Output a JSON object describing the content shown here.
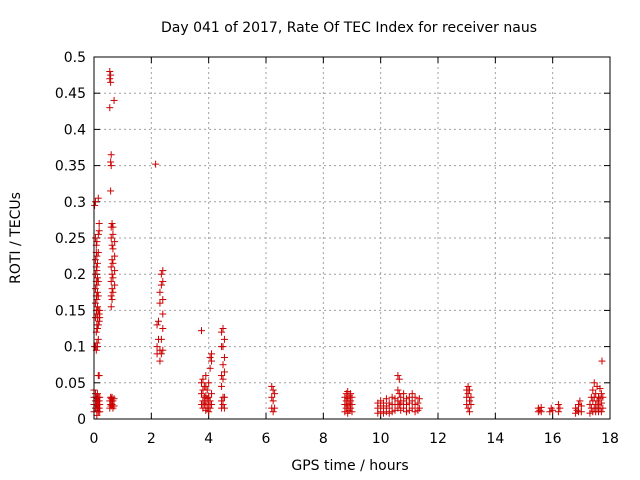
{
  "chart_data": {
    "type": "scatter",
    "title": "Day 041 of 2017, Rate Of TEC Index for receiver naus",
    "xlabel": "GPS time / hours",
    "ylabel": "ROTI / TECUs",
    "xlim": [
      0,
      18
    ],
    "ylim": [
      0,
      0.5
    ],
    "x_ticks": [
      "0",
      "2",
      "4",
      "6",
      "8",
      "10",
      "12",
      "14",
      "16",
      "18"
    ],
    "y_ticks": [
      "0",
      "0.05",
      "0.1",
      "0.15",
      "0.2",
      "0.25",
      "0.3",
      "0.35",
      "0.4",
      "0.45",
      "0.5"
    ],
    "grid": true,
    "marker": "+",
    "color": "#cc0000",
    "series": [
      {
        "values": [
          [
            0.0,
            0.01
          ],
          [
            0.0,
            0.02
          ],
          [
            0.0,
            0.03
          ],
          [
            0.0,
            0.04
          ],
          [
            0.02,
            0.1
          ],
          [
            0.02,
            0.295
          ],
          [
            0.05,
            0.015
          ],
          [
            0.05,
            0.025
          ],
          [
            0.05,
            0.035
          ],
          [
            0.05,
            0.1
          ],
          [
            0.05,
            0.14
          ],
          [
            0.05,
            0.16
          ],
          [
            0.05,
            0.18
          ],
          [
            0.05,
            0.2
          ],
          [
            0.05,
            0.22
          ],
          [
            0.05,
            0.25
          ],
          [
            0.05,
            0.3
          ],
          [
            0.08,
            0.02
          ],
          [
            0.08,
            0.03
          ],
          [
            0.08,
            0.095
          ],
          [
            0.08,
            0.12
          ],
          [
            0.08,
            0.15
          ],
          [
            0.08,
            0.17
          ],
          [
            0.08,
            0.19
          ],
          [
            0.08,
            0.21
          ],
          [
            0.08,
            0.23
          ],
          [
            0.08,
            0.24
          ],
          [
            0.1,
            0.005
          ],
          [
            0.1,
            0.012
          ],
          [
            0.1,
            0.018
          ],
          [
            0.1,
            0.028
          ],
          [
            0.1,
            0.105
          ],
          [
            0.1,
            0.13
          ],
          [
            0.1,
            0.145
          ],
          [
            0.1,
            0.165
          ],
          [
            0.1,
            0.185
          ],
          [
            0.1,
            0.205
          ],
          [
            0.1,
            0.225
          ],
          [
            0.1,
            0.245
          ],
          [
            0.12,
            0.015
          ],
          [
            0.12,
            0.025
          ],
          [
            0.12,
            0.035
          ],
          [
            0.12,
            0.1
          ],
          [
            0.12,
            0.125
          ],
          [
            0.12,
            0.14
          ],
          [
            0.12,
            0.155
          ],
          [
            0.12,
            0.175
          ],
          [
            0.12,
            0.195
          ],
          [
            0.12,
            0.215
          ],
          [
            0.15,
            0.01
          ],
          [
            0.15,
            0.02
          ],
          [
            0.15,
            0.03
          ],
          [
            0.15,
            0.06
          ],
          [
            0.15,
            0.11
          ],
          [
            0.15,
            0.13
          ],
          [
            0.15,
            0.15
          ],
          [
            0.15,
            0.17
          ],
          [
            0.15,
            0.19
          ],
          [
            0.15,
            0.23
          ],
          [
            0.15,
            0.255
          ],
          [
            0.15,
            0.305
          ],
          [
            0.18,
            0.015
          ],
          [
            0.18,
            0.025
          ],
          [
            0.18,
            0.06
          ],
          [
            0.18,
            0.135
          ],
          [
            0.18,
            0.145
          ],
          [
            0.18,
            0.26
          ],
          [
            0.18,
            0.27
          ],
          [
            0.2,
            0.01
          ],
          [
            0.2,
            0.02
          ],
          [
            0.2,
            0.03
          ],
          [
            0.2,
            0.14
          ],
          [
            0.2,
            0.15
          ],
          [
            0.55,
            0.015
          ],
          [
            0.55,
            0.025
          ],
          [
            0.55,
            0.43
          ],
          [
            0.55,
            0.47
          ],
          [
            0.55,
            0.48
          ],
          [
            0.58,
            0.02
          ],
          [
            0.58,
            0.03
          ],
          [
            0.58,
            0.315
          ],
          [
            0.58,
            0.355
          ],
          [
            0.58,
            0.465
          ],
          [
            0.58,
            0.475
          ],
          [
            0.6,
            0.018
          ],
          [
            0.6,
            0.028
          ],
          [
            0.6,
            0.155
          ],
          [
            0.6,
            0.17
          ],
          [
            0.6,
            0.19
          ],
          [
            0.6,
            0.21
          ],
          [
            0.6,
            0.25
          ],
          [
            0.6,
            0.265
          ],
          [
            0.6,
            0.35
          ],
          [
            0.6,
            0.365
          ],
          [
            0.63,
            0.02
          ],
          [
            0.63,
            0.03
          ],
          [
            0.63,
            0.165
          ],
          [
            0.63,
            0.18
          ],
          [
            0.63,
            0.2
          ],
          [
            0.63,
            0.22
          ],
          [
            0.63,
            0.24
          ],
          [
            0.63,
            0.27
          ],
          [
            0.66,
            0.015
          ],
          [
            0.66,
            0.025
          ],
          [
            0.66,
            0.175
          ],
          [
            0.66,
            0.195
          ],
          [
            0.66,
            0.215
          ],
          [
            0.66,
            0.235
          ],
          [
            0.66,
            0.255
          ],
          [
            0.66,
            0.265
          ],
          [
            0.7,
            0.018
          ],
          [
            0.7,
            0.028
          ],
          [
            0.7,
            0.44
          ],
          [
            0.72,
            0.185
          ],
          [
            0.72,
            0.205
          ],
          [
            0.72,
            0.225
          ],
          [
            0.72,
            0.245
          ],
          [
            2.15,
            0.352
          ],
          [
            2.2,
            0.09
          ],
          [
            2.2,
            0.1
          ],
          [
            2.2,
            0.13
          ],
          [
            2.25,
            0.11
          ],
          [
            2.25,
            0.135
          ],
          [
            2.3,
            0.08
          ],
          [
            2.3,
            0.095
          ],
          [
            2.3,
            0.16
          ],
          [
            2.3,
            0.175
          ],
          [
            2.35,
            0.09
          ],
          [
            2.35,
            0.11
          ],
          [
            2.35,
            0.185
          ],
          [
            2.35,
            0.2
          ],
          [
            2.4,
            0.095
          ],
          [
            2.4,
            0.125
          ],
          [
            2.4,
            0.145
          ],
          [
            2.4,
            0.165
          ],
          [
            2.4,
            0.19
          ],
          [
            2.4,
            0.205
          ],
          [
            3.75,
            0.02
          ],
          [
            3.75,
            0.035
          ],
          [
            3.75,
            0.05
          ],
          [
            3.75,
            0.122
          ],
          [
            3.8,
            0.015
          ],
          [
            3.8,
            0.025
          ],
          [
            3.8,
            0.04
          ],
          [
            3.8,
            0.055
          ],
          [
            3.85,
            0.02
          ],
          [
            3.85,
            0.03
          ],
          [
            3.85,
            0.045
          ],
          [
            3.9,
            0.012
          ],
          [
            3.9,
            0.022
          ],
          [
            3.9,
            0.032
          ],
          [
            3.9,
            0.045
          ],
          [
            3.9,
            0.06
          ],
          [
            3.95,
            0.015
          ],
          [
            3.95,
            0.028
          ],
          [
            3.95,
            0.04
          ],
          [
            4.0,
            0.01
          ],
          [
            4.0,
            0.02
          ],
          [
            4.0,
            0.03
          ],
          [
            4.0,
            0.05
          ],
          [
            4.05,
            0.015
          ],
          [
            4.05,
            0.025
          ],
          [
            4.05,
            0.07
          ],
          [
            4.05,
            0.085
          ],
          [
            4.1,
            0.02
          ],
          [
            4.1,
            0.035
          ],
          [
            4.1,
            0.08
          ],
          [
            4.1,
            0.09
          ],
          [
            4.45,
            0.015
          ],
          [
            4.45,
            0.025
          ],
          [
            4.45,
            0.045
          ],
          [
            4.45,
            0.06
          ],
          [
            4.45,
            0.1
          ],
          [
            4.45,
            0.12
          ],
          [
            4.5,
            0.02
          ],
          [
            4.5,
            0.03
          ],
          [
            4.5,
            0.055
          ],
          [
            4.5,
            0.075
          ],
          [
            4.5,
            0.1
          ],
          [
            4.5,
            0.125
          ],
          [
            4.55,
            0.015
          ],
          [
            4.55,
            0.03
          ],
          [
            4.55,
            0.065
          ],
          [
            4.55,
            0.085
          ],
          [
            4.55,
            0.11
          ],
          [
            6.2,
            0.015
          ],
          [
            6.2,
            0.03
          ],
          [
            6.2,
            0.045
          ],
          [
            6.25,
            0.01
          ],
          [
            6.25,
            0.025
          ],
          [
            6.25,
            0.04
          ],
          [
            6.3,
            0.015
          ],
          [
            6.3,
            0.035
          ],
          [
            8.75,
            0.01
          ],
          [
            8.75,
            0.02
          ],
          [
            8.75,
            0.03
          ],
          [
            8.8,
            0.015
          ],
          [
            8.8,
            0.025
          ],
          [
            8.8,
            0.035
          ],
          [
            8.85,
            0.008
          ],
          [
            8.85,
            0.018
          ],
          [
            8.85,
            0.028
          ],
          [
            8.85,
            0.038
          ],
          [
            8.9,
            0.012
          ],
          [
            8.9,
            0.022
          ],
          [
            8.9,
            0.032
          ],
          [
            8.95,
            0.015
          ],
          [
            8.95,
            0.025
          ],
          [
            8.95,
            0.035
          ],
          [
            9.0,
            0.01
          ],
          [
            9.0,
            0.02
          ],
          [
            9.0,
            0.03
          ],
          [
            9.9,
            0.008
          ],
          [
            9.9,
            0.015
          ],
          [
            9.9,
            0.022
          ],
          [
            10.0,
            0.01
          ],
          [
            10.0,
            0.018
          ],
          [
            10.0,
            0.025
          ],
          [
            10.1,
            0.008
          ],
          [
            10.1,
            0.015
          ],
          [
            10.1,
            0.022
          ],
          [
            10.2,
            0.01
          ],
          [
            10.2,
            0.018
          ],
          [
            10.2,
            0.028
          ],
          [
            10.3,
            0.008
          ],
          [
            10.3,
            0.015
          ],
          [
            10.3,
            0.022
          ],
          [
            10.4,
            0.01
          ],
          [
            10.4,
            0.02
          ],
          [
            10.4,
            0.03
          ],
          [
            10.5,
            0.012
          ],
          [
            10.5,
            0.02
          ],
          [
            10.5,
            0.028
          ],
          [
            10.6,
            0.015
          ],
          [
            10.6,
            0.025
          ],
          [
            10.6,
            0.04
          ],
          [
            10.6,
            0.06
          ],
          [
            10.65,
            0.02
          ],
          [
            10.65,
            0.035
          ],
          [
            10.65,
            0.055
          ],
          [
            10.7,
            0.012
          ],
          [
            10.7,
            0.022
          ],
          [
            10.7,
            0.03
          ],
          [
            10.8,
            0.015
          ],
          [
            10.8,
            0.025
          ],
          [
            10.8,
            0.035
          ],
          [
            10.9,
            0.01
          ],
          [
            10.9,
            0.02
          ],
          [
            10.9,
            0.028
          ],
          [
            11.0,
            0.012
          ],
          [
            11.0,
            0.022
          ],
          [
            11.0,
            0.03
          ],
          [
            11.1,
            0.015
          ],
          [
            11.1,
            0.025
          ],
          [
            11.1,
            0.035
          ],
          [
            11.2,
            0.01
          ],
          [
            11.2,
            0.02
          ],
          [
            11.2,
            0.03
          ],
          [
            11.3,
            0.012
          ],
          [
            11.3,
            0.022
          ],
          [
            11.35,
            0.015
          ],
          [
            11.35,
            0.028
          ],
          [
            13.0,
            0.02
          ],
          [
            13.0,
            0.03
          ],
          [
            13.0,
            0.04
          ],
          [
            13.05,
            0.015
          ],
          [
            13.05,
            0.035
          ],
          [
            13.05,
            0.045
          ],
          [
            13.1,
            0.01
          ],
          [
            13.1,
            0.025
          ],
          [
            13.1,
            0.04
          ],
          [
            13.15,
            0.02
          ],
          [
            13.15,
            0.03
          ],
          [
            15.5,
            0.01
          ],
          [
            15.5,
            0.015
          ],
          [
            15.55,
            0.012
          ],
          [
            15.6,
            0.01
          ],
          [
            15.6,
            0.016
          ],
          [
            15.9,
            0.01
          ],
          [
            15.95,
            0.015
          ],
          [
            16.0,
            0.012
          ],
          [
            16.2,
            0.01
          ],
          [
            16.2,
            0.02
          ],
          [
            16.25,
            0.015
          ],
          [
            16.8,
            0.008
          ],
          [
            16.8,
            0.015
          ],
          [
            16.85,
            0.012
          ],
          [
            16.9,
            0.01
          ],
          [
            16.9,
            0.02
          ],
          [
            16.95,
            0.025
          ],
          [
            17.0,
            0.01
          ],
          [
            17.0,
            0.018
          ],
          [
            17.3,
            0.008
          ],
          [
            17.3,
            0.02
          ],
          [
            17.35,
            0.015
          ],
          [
            17.35,
            0.03
          ],
          [
            17.4,
            0.01
          ],
          [
            17.4,
            0.025
          ],
          [
            17.4,
            0.04
          ],
          [
            17.45,
            0.015
          ],
          [
            17.45,
            0.03
          ],
          [
            17.45,
            0.05
          ],
          [
            17.5,
            0.01
          ],
          [
            17.5,
            0.02
          ],
          [
            17.5,
            0.035
          ],
          [
            17.55,
            0.015
          ],
          [
            17.55,
            0.025
          ],
          [
            17.55,
            0.045
          ],
          [
            17.6,
            0.01
          ],
          [
            17.6,
            0.02
          ],
          [
            17.6,
            0.03
          ],
          [
            17.65,
            0.015
          ],
          [
            17.65,
            0.028
          ],
          [
            17.65,
            0.042
          ],
          [
            17.7,
            0.01
          ],
          [
            17.7,
            0.022
          ],
          [
            17.7,
            0.035
          ],
          [
            17.72,
            0.08
          ],
          [
            17.75,
            0.015
          ],
          [
            17.75,
            0.03
          ]
        ]
      }
    ]
  }
}
